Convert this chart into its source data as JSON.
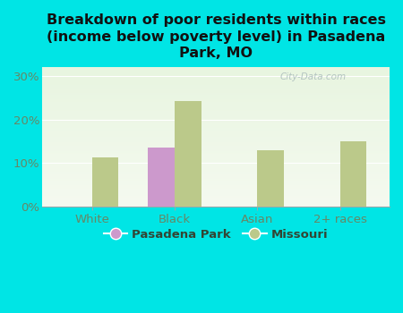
{
  "title": "Breakdown of poor residents within races\n(income below poverty level) in Pasadena\nPark, MO",
  "categories": [
    "White",
    "Black",
    "Asian",
    "2+ races"
  ],
  "pasadena_park": [
    0,
    13.5,
    0,
    0
  ],
  "missouri": [
    11.2,
    24.2,
    13.0,
    15.0
  ],
  "pasadena_color": "#cc99cc",
  "missouri_color": "#bbc98a",
  "background_color": "#00e5e5",
  "chart_bg_top": "#e8f5e0",
  "chart_bg_bottom": "#f5faf0",
  "bar_width": 0.32,
  "ylim": [
    0,
    32
  ],
  "yticks": [
    0,
    10,
    20,
    30
  ],
  "ytick_labels": [
    "0%",
    "10%",
    "20%",
    "30%"
  ],
  "legend_labels": [
    "Pasadena Park",
    "Missouri"
  ],
  "watermark": "City-Data.com",
  "title_fontsize": 11.5,
  "axis_fontsize": 9.5,
  "legend_fontsize": 9.5,
  "tick_color": "#668866",
  "title_color": "#111111"
}
